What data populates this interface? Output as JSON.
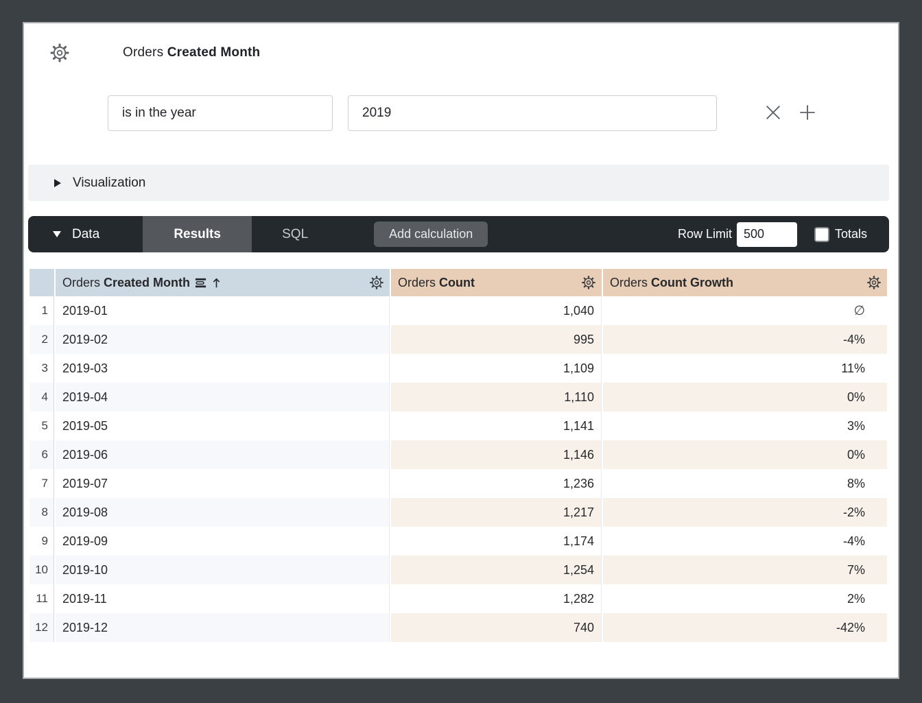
{
  "header": {
    "title_prefix": "Orders",
    "title_bold": "Created Month"
  },
  "filter": {
    "condition": "is in the year",
    "value": "2019"
  },
  "visualization": {
    "label": "Visualization"
  },
  "data_bar": {
    "data_label": "Data",
    "results_tab": "Results",
    "sql_tab": "SQL",
    "add_calculation": "Add calculation",
    "row_limit_label": "Row Limit",
    "row_limit_value": "500",
    "totals_label": "Totals",
    "totals_checked": false
  },
  "table": {
    "columns": [
      {
        "prefix": "Orders",
        "bold": "Created Month",
        "type": "dimension",
        "sorted": "ascending"
      },
      {
        "prefix": "Orders",
        "bold": "Count",
        "type": "measure"
      },
      {
        "prefix": "Orders",
        "bold": "Count Growth",
        "type": "measure"
      }
    ],
    "rows": [
      {
        "n": "1",
        "month": "2019-01",
        "count": "1,040",
        "growth": "∅"
      },
      {
        "n": "2",
        "month": "2019-02",
        "count": "995",
        "growth": "-4%"
      },
      {
        "n": "3",
        "month": "2019-03",
        "count": "1,109",
        "growth": "11%"
      },
      {
        "n": "4",
        "month": "2019-04",
        "count": "1,110",
        "growth": "0%"
      },
      {
        "n": "5",
        "month": "2019-05",
        "count": "1,141",
        "growth": "3%"
      },
      {
        "n": "6",
        "month": "2019-06",
        "count": "1,146",
        "growth": "0%"
      },
      {
        "n": "7",
        "month": "2019-07",
        "count": "1,236",
        "growth": "8%"
      },
      {
        "n": "8",
        "month": "2019-08",
        "count": "1,217",
        "growth": "-2%"
      },
      {
        "n": "9",
        "month": "2019-09",
        "count": "1,174",
        "growth": "-4%"
      },
      {
        "n": "10",
        "month": "2019-10",
        "count": "1,254",
        "growth": "7%"
      },
      {
        "n": "11",
        "month": "2019-11",
        "count": "1,282",
        "growth": "2%"
      },
      {
        "n": "12",
        "month": "2019-12",
        "count": "740",
        "growth": "-42%"
      }
    ]
  },
  "colors": {
    "frame-bg": "#3b4045",
    "viz-bar-bg": "#f0f2f3",
    "data-bar-bg": "#24292d",
    "active-tab-bg": "#54585c",
    "button-bg": "#585c60",
    "dim-header-bg": "#ccd9e3",
    "measure-header-bg": "#e9ceb7",
    "dim-stripe-bg": "#f6f8fb",
    "measure-stripe-bg": "#f8f1ea"
  }
}
